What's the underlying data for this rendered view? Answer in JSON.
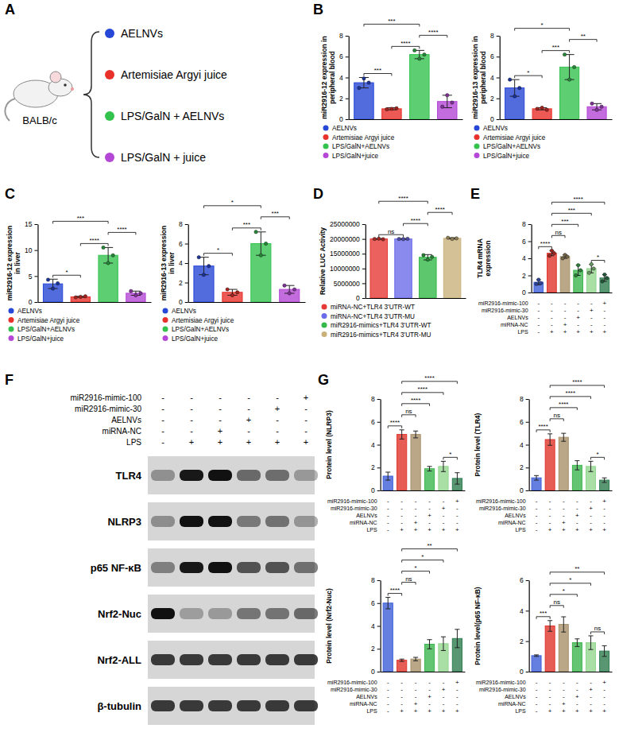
{
  "panels": [
    "A",
    "B",
    "C",
    "D",
    "E",
    "F",
    "G"
  ],
  "diagram": {
    "mouse_label": "BALB/c",
    "groups": [
      {
        "label": "AELNVs",
        "color": "#2747d6"
      },
      {
        "label": "Artemisiae Argyi juice",
        "color": "#e8312a"
      },
      {
        "label": "LPS/GalN + AELNVs",
        "color": "#34c24f"
      },
      {
        "label": "LPS/GalN + juice",
        "color": "#b447d6"
      }
    ]
  },
  "conditions": [
    {
      "label": "miR2916-mimic-100",
      "signs": [
        "-",
        "-",
        "-",
        "-",
        "-",
        "+"
      ]
    },
    {
      "label": "miR2916-mimic-30",
      "signs": [
        "-",
        "-",
        "-",
        "-",
        "+",
        "-"
      ]
    },
    {
      "label": "AELNVs",
      "signs": [
        "-",
        "-",
        "-",
        "+",
        "-",
        "-"
      ]
    },
    {
      "label": "miRNA-NC",
      "signs": [
        "-",
        "-",
        "+",
        "-",
        "-",
        "-"
      ]
    },
    {
      "label": "LPS",
      "signs": [
        "-",
        "+",
        "+",
        "+",
        "+",
        "+"
      ]
    }
  ],
  "blot": {
    "bands": [
      "TLR4",
      "NLRP3",
      "p65 NF-κB",
      "Nrf2-Nuc",
      "Nrf2-ALL",
      "β-tubulin"
    ]
  },
  "chart_data": [
    {
      "type": "bar",
      "ylabel": "miR2916-12 expression in peripheral blood",
      "categories": [
        "AELNVs",
        "Artemisiae Argyi juice",
        "LPS/GalN+AELNVs",
        "LPS/GalN+juice"
      ],
      "colors": [
        "#2747d6",
        "#e8312a",
        "#34c24f",
        "#b447d6"
      ],
      "values": [
        3.5,
        1.0,
        6.2,
        1.7
      ],
      "errors": [
        0.5,
        0.1,
        0.4,
        0.6
      ],
      "points": [
        [
          3.0,
          3.9,
          3.5
        ],
        [
          0.95,
          1.0,
          1.05
        ],
        [
          6.6,
          5.8,
          6.2
        ],
        [
          1.2,
          2.3,
          1.6
        ]
      ],
      "ylim": [
        0,
        8
      ],
      "yticks": [
        0,
        2,
        4,
        6,
        8
      ],
      "legend": "bottom",
      "tick_labels": "y",
      "comparisons": [
        {
          "groups": [
            0,
            1
          ],
          "label": "***"
        },
        {
          "groups": [
            0,
            2
          ],
          "label": "***"
        },
        {
          "groups": [
            1,
            2
          ],
          "label": "****"
        },
        {
          "groups": [
            2,
            3
          ],
          "label": "****"
        }
      ]
    },
    {
      "type": "bar",
      "ylabel": "miR2916-13 expression in peripheral blood",
      "categories": [
        "AELNVs",
        "Artemisiae Argyi juice",
        "LPS/GalN+AELNVs",
        "LPS/GalN+juice"
      ],
      "colors": [
        "#2747d6",
        "#e8312a",
        "#34c24f",
        "#b447d6"
      ],
      "values": [
        3.0,
        1.0,
        5.0,
        1.2
      ],
      "errors": [
        0.8,
        0.1,
        1.2,
        0.3
      ],
      "points": [
        [
          3.8,
          2.2,
          3.0
        ],
        [
          1.0,
          1.1,
          0.9
        ],
        [
          6.2,
          3.8,
          5.0
        ],
        [
          1.5,
          0.9,
          1.2
        ]
      ],
      "ylim": [
        0,
        8
      ],
      "yticks": [
        0,
        2,
        4,
        6,
        8
      ],
      "legend": "bottom",
      "tick_labels": "y",
      "comparisons": [
        {
          "groups": [
            0,
            1
          ],
          "label": "*"
        },
        {
          "groups": [
            0,
            2
          ],
          "label": "*"
        },
        {
          "groups": [
            1,
            2
          ],
          "label": "***"
        },
        {
          "groups": [
            2,
            3
          ],
          "label": "**"
        }
      ]
    },
    {
      "type": "bar",
      "ylabel": "miR2916-12 expression in liver",
      "categories": [
        "AELNVs",
        "Artemisiae Argyi juice",
        "LPS/GalN+AELNVs",
        "LPS/GalN+juice"
      ],
      "colors": [
        "#2747d6",
        "#e8312a",
        "#34c24f",
        "#b447d6"
      ],
      "values": [
        3.5,
        1.0,
        9.0,
        1.7
      ],
      "errors": [
        0.9,
        0.1,
        1.5,
        0.4
      ],
      "points": [
        [
          4.3,
          2.6,
          3.6
        ],
        [
          0.9,
          1.0,
          1.1
        ],
        [
          10.5,
          7.5,
          9.0
        ],
        [
          2.1,
          1.3,
          1.7
        ]
      ],
      "ylim": [
        0,
        15
      ],
      "yticks": [
        0,
        5,
        10,
        15
      ],
      "legend": "bottom",
      "tick_labels": "y",
      "comparisons": [
        {
          "groups": [
            0,
            1
          ],
          "label": "*"
        },
        {
          "groups": [
            0,
            2
          ],
          "label": "***"
        },
        {
          "groups": [
            1,
            2
          ],
          "label": "****"
        },
        {
          "groups": [
            2,
            3
          ],
          "label": "****"
        }
      ]
    },
    {
      "type": "bar",
      "ylabel": "miR2916-13 expression in liver",
      "categories": [
        "AELNVs",
        "Artemisiae Argyi juice",
        "LPS/GalN+AELNVs",
        "LPS/GalN+juice"
      ],
      "colors": [
        "#2747d6",
        "#e8312a",
        "#34c24f",
        "#b447d6"
      ],
      "values": [
        3.7,
        1.0,
        6.0,
        1.3
      ],
      "errors": [
        0.9,
        0.3,
        1.2,
        0.4
      ],
      "points": [
        [
          4.6,
          2.8,
          3.7
        ],
        [
          1.3,
          0.7,
          1.0
        ],
        [
          7.2,
          4.8,
          6.0
        ],
        [
          1.7,
          0.9,
          1.3
        ]
      ],
      "ylim": [
        0,
        8
      ],
      "yticks": [
        0,
        2,
        4,
        6,
        8
      ],
      "legend": "bottom",
      "tick_labels": "y",
      "comparisons": [
        {
          "groups": [
            0,
            1
          ],
          "label": "*"
        },
        {
          "groups": [
            0,
            2
          ],
          "label": "*"
        },
        {
          "groups": [
            1,
            2
          ],
          "label": "***"
        },
        {
          "groups": [
            2,
            3
          ],
          "label": "***"
        }
      ]
    },
    {
      "type": "bar",
      "ylabel": "Relative LUC Activity",
      "categories": [
        "miRNA-NC+TLR4 3'UTR-WT",
        "miRNA-NC+TLR4 3'UTR-MU",
        "miR2916-mimics+TLR4 3'UTR-WT",
        "miR2916-mimics+TLR4 3'UTR-MU"
      ],
      "colors": [
        "#e53a35",
        "#6b6bea",
        "#35b94a",
        "#c9b27a"
      ],
      "values": [
        20000000,
        20000000,
        13800000,
        20200000
      ],
      "errors": [
        100000,
        100000,
        900000,
        200000
      ],
      "points": [
        [
          20000000,
          20100000,
          19900000
        ],
        [
          20000000,
          19950000,
          20050000
        ],
        [
          14500000,
          13000000,
          13900000
        ],
        [
          20400000,
          20000000,
          20200000
        ]
      ],
      "ylim": [
        0,
        25000000
      ],
      "yticks": [
        0,
        5000000,
        10000000,
        15000000,
        20000000,
        25000000
      ],
      "legend": "bottom",
      "tick_labels": "y",
      "comparisons": [
        {
          "groups": [
            0,
            1
          ],
          "label": "ns"
        },
        {
          "groups": [
            0,
            2
          ],
          "label": "****"
        },
        {
          "groups": [
            1,
            2
          ],
          "label": "****"
        },
        {
          "groups": [
            2,
            3
          ],
          "label": "****"
        }
      ]
    },
    {
      "type": "bar",
      "ylabel": "TLR4 mRNA expression",
      "categories": [
        null,
        null,
        null,
        null,
        null,
        null
      ],
      "colors": [
        "#3f5fd8",
        "#e0342c",
        "#a8916a",
        "#3cb54f",
        "#93d68e",
        "#2f7d50"
      ],
      "values": [
        1.2,
        4.6,
        4.2,
        2.6,
        2.8,
        1.7
      ],
      "errors": [
        0.3,
        0.3,
        0.2,
        0.6,
        0.5,
        0.4
      ],
      "points": [
        [
          1.0,
          1.5,
          1.1
        ],
        [
          4.3,
          4.9,
          4.6
        ],
        [
          4.0,
          4.4,
          4.2
        ],
        [
          2.0,
          3.2,
          2.6
        ],
        [
          2.3,
          3.3,
          2.8
        ],
        [
          1.3,
          2.1,
          1.7
        ]
      ],
      "ylim": [
        0,
        8
      ],
      "yticks": [
        0,
        2,
        4,
        6,
        8
      ],
      "tick_labels": "y",
      "comparisons": [
        {
          "groups": [
            0,
            1
          ],
          "label": "****"
        },
        {
          "groups": [
            1,
            2
          ],
          "label": "ns"
        },
        {
          "groups": [
            1,
            3
          ],
          "label": "***"
        },
        {
          "groups": [
            1,
            4
          ],
          "label": "***"
        },
        {
          "groups": [
            1,
            5
          ],
          "label": "****"
        },
        {
          "groups": [
            4,
            5
          ],
          "label": "*"
        }
      ]
    },
    {
      "type": "bar",
      "ylabel": "Protein level (NLRP3)",
      "categories": [
        null,
        null,
        null,
        null,
        null,
        null
      ],
      "colors": [
        "#3f5fd8",
        "#e0342c",
        "#a8916a",
        "#3cb54f",
        "#93d68e",
        "#2f7d50"
      ],
      "values": [
        1.25,
        4.9,
        4.9,
        1.9,
        2.1,
        1.05
      ],
      "errors": [
        0.35,
        0.4,
        0.3,
        0.2,
        0.45,
        0.5
      ],
      "ylim": [
        0,
        8
      ],
      "yticks": [
        0,
        2,
        4,
        6,
        8
      ],
      "tick_labels": "y",
      "comparisons": [
        {
          "groups": [
            0,
            1
          ],
          "label": "****"
        },
        {
          "groups": [
            1,
            2
          ],
          "label": "ns"
        },
        {
          "groups": [
            1,
            3
          ],
          "label": "****"
        },
        {
          "groups": [
            1,
            4
          ],
          "label": "****"
        },
        {
          "groups": [
            1,
            5
          ],
          "label": "****"
        },
        {
          "groups": [
            4,
            5
          ],
          "label": "*"
        }
      ]
    },
    {
      "type": "bar",
      "ylabel": "Protein level (TLR4)",
      "categories": [
        null,
        null,
        null,
        null,
        null,
        null
      ],
      "colors": [
        "#3f5fd8",
        "#e0342c",
        "#a8916a",
        "#3cb54f",
        "#93d68e",
        "#2f7d50"
      ],
      "values": [
        1.1,
        4.45,
        4.65,
        2.2,
        2.1,
        0.9
      ],
      "errors": [
        0.2,
        0.5,
        0.35,
        0.4,
        0.45,
        0.2
      ],
      "ylim": [
        0,
        8
      ],
      "yticks": [
        0,
        2,
        4,
        6,
        8
      ],
      "tick_labels": "y",
      "comparisons": [
        {
          "groups": [
            0,
            1
          ],
          "label": "****"
        },
        {
          "groups": [
            1,
            2
          ],
          "label": "ns"
        },
        {
          "groups": [
            1,
            3
          ],
          "label": "****"
        },
        {
          "groups": [
            1,
            4
          ],
          "label": "****"
        },
        {
          "groups": [
            1,
            5
          ],
          "label": "****"
        },
        {
          "groups": [
            4,
            5
          ],
          "label": "*"
        }
      ]
    },
    {
      "type": "bar",
      "ylabel": "Protein level (Nrf2-Nuc)",
      "categories": [
        null,
        null,
        null,
        null,
        null,
        null
      ],
      "colors": [
        "#3f5fd8",
        "#e0342c",
        "#a8916a",
        "#3cb54f",
        "#93d68e",
        "#2f7d50"
      ],
      "values": [
        6.0,
        1.0,
        1.1,
        2.4,
        2.45,
        2.9
      ],
      "errors": [
        0.5,
        0.1,
        0.15,
        0.4,
        0.6,
        0.8
      ],
      "ylim": [
        0,
        8
      ],
      "yticks": [
        0,
        2,
        4,
        6,
        8
      ],
      "tick_labels": "y",
      "comparisons": [
        {
          "groups": [
            0,
            1
          ],
          "label": "****"
        },
        {
          "groups": [
            1,
            2
          ],
          "label": "ns"
        },
        {
          "groups": [
            1,
            3
          ],
          "label": "*"
        },
        {
          "groups": [
            1,
            4
          ],
          "label": "*"
        },
        {
          "groups": [
            1,
            5
          ],
          "label": "**"
        }
      ]
    },
    {
      "type": "bar",
      "ylabel": "Protein level(p65 NF-κB)",
      "categories": [
        null,
        null,
        null,
        null,
        null,
        null
      ],
      "colors": [
        "#3f5fd8",
        "#e0342c",
        "#a8916a",
        "#3cb54f",
        "#93d68e",
        "#2f7d50"
      ],
      "values": [
        1.05,
        3.0,
        3.1,
        1.9,
        1.9,
        1.35
      ],
      "errors": [
        0.05,
        0.35,
        0.5,
        0.25,
        0.45,
        0.35
      ],
      "ylim": [
        0,
        6
      ],
      "yticks": [
        0,
        2,
        4,
        6
      ],
      "tick_labels": "y",
      "comparisons": [
        {
          "groups": [
            0,
            1
          ],
          "label": "***"
        },
        {
          "groups": [
            1,
            2
          ],
          "label": "ns"
        },
        {
          "groups": [
            1,
            3
          ],
          "label": "*"
        },
        {
          "groups": [
            1,
            4
          ],
          "label": "*"
        },
        {
          "groups": [
            1,
            5
          ],
          "label": "**"
        },
        {
          "groups": [
            4,
            5
          ],
          "label": "ns"
        }
      ]
    }
  ]
}
